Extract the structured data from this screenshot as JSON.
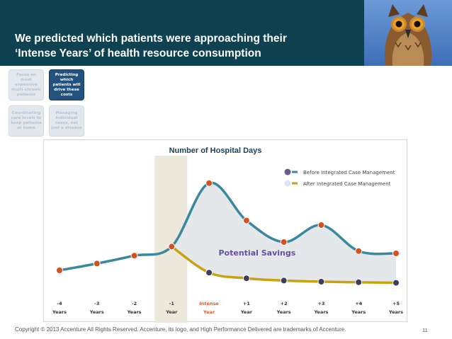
{
  "slide": {
    "title_line1": "We predicted which patients were approaching their",
    "title_line2": "‘Intense Years’ of health resource consumption",
    "footer": "Copyright © 2013 Accenture  All Rights Reserved. Accenture, its logo, and High Performance Delivered are trademarks of Accenture.",
    "page_number": "11",
    "header_color": "#0f4250"
  },
  "boxes": [
    {
      "text": "Focus on most expensive multi-chronic patients",
      "style": "light"
    },
    {
      "text": "Predicting which patients will drive these costs",
      "style": "dark"
    },
    {
      "text": "Coordinating care levels to keep patients at home",
      "style": "light"
    },
    {
      "text": "Managing individual cases, not just a disease",
      "style": "light"
    }
  ],
  "chart_data": {
    "type": "line",
    "title": "Number of Hospital Days",
    "categories": [
      {
        "top": "-4",
        "bottom": "Years"
      },
      {
        "top": "-3",
        "bottom": "Years"
      },
      {
        "top": "-2",
        "bottom": "Years"
      },
      {
        "top": "-1",
        "bottom": "Year"
      },
      {
        "top": "Intense",
        "bottom": "Year"
      },
      {
        "top": "+1",
        "bottom": "Year"
      },
      {
        "top": "+2",
        "bottom": "Years"
      },
      {
        "top": "+3",
        "bottom": "Years"
      },
      {
        "top": "+4",
        "bottom": "Years"
      },
      {
        "top": "+5",
        "bottom": "Years"
      }
    ],
    "highlight_category_index": 4,
    "highlight_color": "#e2562c",
    "ylim": [
      0,
      100
    ],
    "series": [
      {
        "name": "Before Integrated Case Management",
        "color": "#3a87a0",
        "marker": "#d9501f",
        "values": [
          10,
          16,
          23,
          31,
          87,
          54,
          35,
          50,
          27,
          25
        ]
      },
      {
        "name": "After Integrated Case Management",
        "color": "#c9a212",
        "marker": "#3f3d5c",
        "values": [
          null,
          null,
          null,
          31,
          8,
          3,
          1,
          0,
          -0.5,
          -1
        ]
      }
    ],
    "legend_markers": [
      "#6b5b8c",
      "#dde6ee"
    ],
    "annotation": "Potential Savings",
    "annotation_color": "#6650a0",
    "shaded_band_index": 3,
    "shaded_band_color": "#ede8dc",
    "savings_fill": "#e4e8eb"
  }
}
